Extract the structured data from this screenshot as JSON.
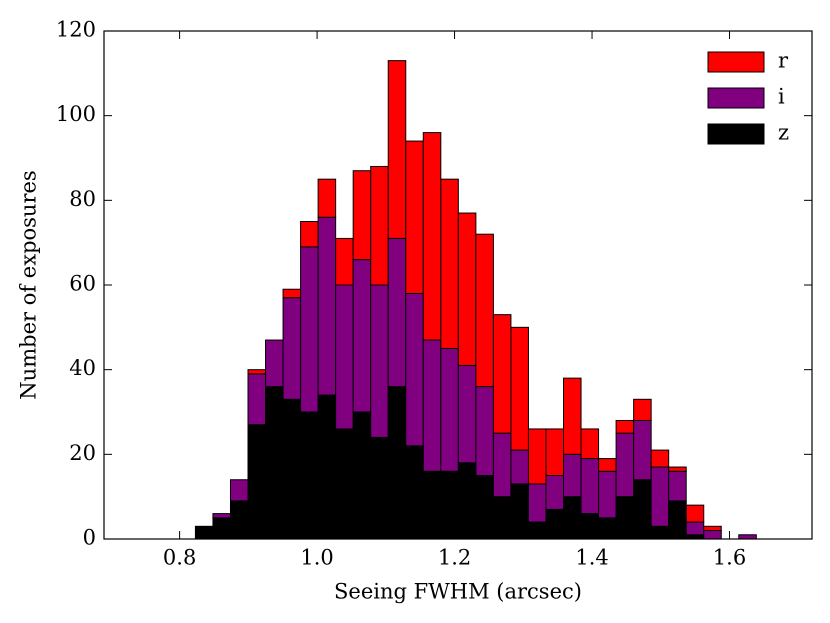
{
  "chart_data": {
    "type": "stacked-histogram",
    "xlabel": "Seeing FWHM (arcsec)",
    "ylabel": "Number of exposures",
    "bins": [
      0.823,
      0.8485,
      0.874,
      0.8995,
      0.925,
      0.9505,
      0.976,
      1.0015,
      1.027,
      1.0525,
      1.078,
      1.1035,
      1.129,
      1.1545,
      1.18,
      1.2055,
      1.231,
      1.2565,
      1.282,
      1.3075,
      1.333,
      1.3585,
      1.384,
      1.4095,
      1.435,
      1.4605,
      1.486,
      1.5115,
      1.537,
      1.5625,
      1.588,
      1.6135,
      1.639
    ],
    "series": [
      {
        "name": "z",
        "color": "#000000",
        "values": [
          3,
          5,
          9,
          27,
          36,
          33,
          30,
          34,
          26,
          30,
          24,
          36,
          22,
          16,
          16,
          18,
          15,
          10,
          13,
          4,
          7,
          10,
          6,
          5,
          10,
          14,
          3,
          9,
          1,
          0,
          0,
          0
        ]
      },
      {
        "name": "i",
        "color": "#800080",
        "values": [
          0,
          1,
          5,
          12,
          11,
          24,
          39,
          42,
          34,
          36,
          36,
          35,
          36,
          31,
          29,
          23,
          21,
          15,
          8,
          9,
          8,
          10,
          13,
          11,
          15,
          14,
          14,
          7,
          3,
          2,
          0,
          1
        ]
      },
      {
        "name": "r",
        "color": "#ff0000",
        "values": [
          0,
          0,
          0,
          1,
          0,
          2,
          6,
          9,
          11,
          21,
          28,
          42,
          36,
          49,
          40,
          36,
          36,
          28,
          29,
          13,
          11,
          18,
          7,
          3,
          3,
          5,
          4,
          1,
          4,
          1,
          0,
          0
        ]
      }
    ],
    "xlim": [
      0.69,
      1.72
    ],
    "ylim": [
      0,
      120
    ],
    "xticks": [
      0.8,
      {
        "value": 1,
        "label": "1.0"
      },
      1.2,
      1.4,
      1.6
    ],
    "yticks": [
      0,
      20,
      40,
      60,
      80,
      100,
      120
    ],
    "legend": "upper right"
  }
}
